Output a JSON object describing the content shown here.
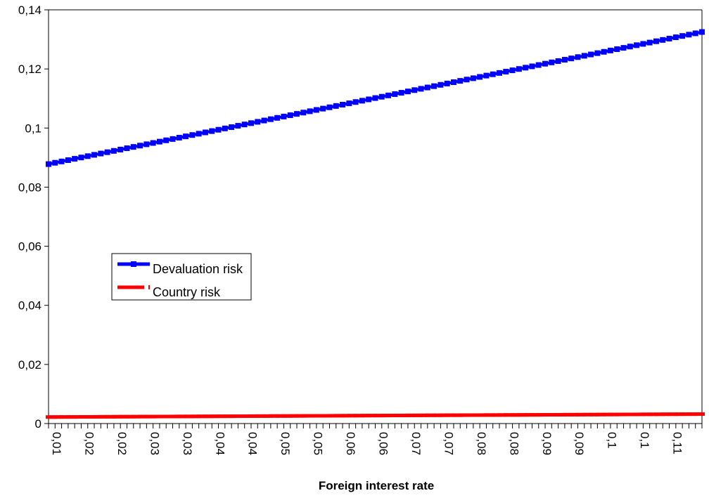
{
  "chart_data": {
    "type": "line",
    "title": "",
    "xlabel": "Foreign interest rate",
    "ylabel": "",
    "ylim": [
      0,
      0.14
    ],
    "yticks": [
      0,
      0.02,
      0.04,
      0.06,
      0.08,
      0.1,
      0.12,
      0.14
    ],
    "ytick_labels": [
      "0",
      "0,02",
      "0,04",
      "0,06",
      "0,08",
      "0,1",
      "0,12",
      "0,14"
    ],
    "xticks_shown": [
      "0,01",
      "0,02",
      "0,02",
      "0,03",
      "0,03",
      "0,04",
      "0,04",
      "0,05",
      "0,05",
      "0,06",
      "0,06",
      "0,07",
      "0,07",
      "0,08",
      "0,08",
      "0,09",
      "0,09",
      "0,1",
      "0,1",
      "0,11"
    ],
    "x": {
      "start": 0.01,
      "end": 0.11,
      "points": 101
    },
    "series": [
      {
        "name": "Devaluation risk",
        "color": "#0000ff",
        "marker": "square",
        "y_start": 0.0878,
        "y_end": 0.1325
      },
      {
        "name": "Country risk",
        "color": "#ff0000",
        "marker": "dash",
        "y_start": 0.0022,
        "y_end": 0.0032
      }
    ],
    "legend_position": "center-left",
    "grid": false
  }
}
